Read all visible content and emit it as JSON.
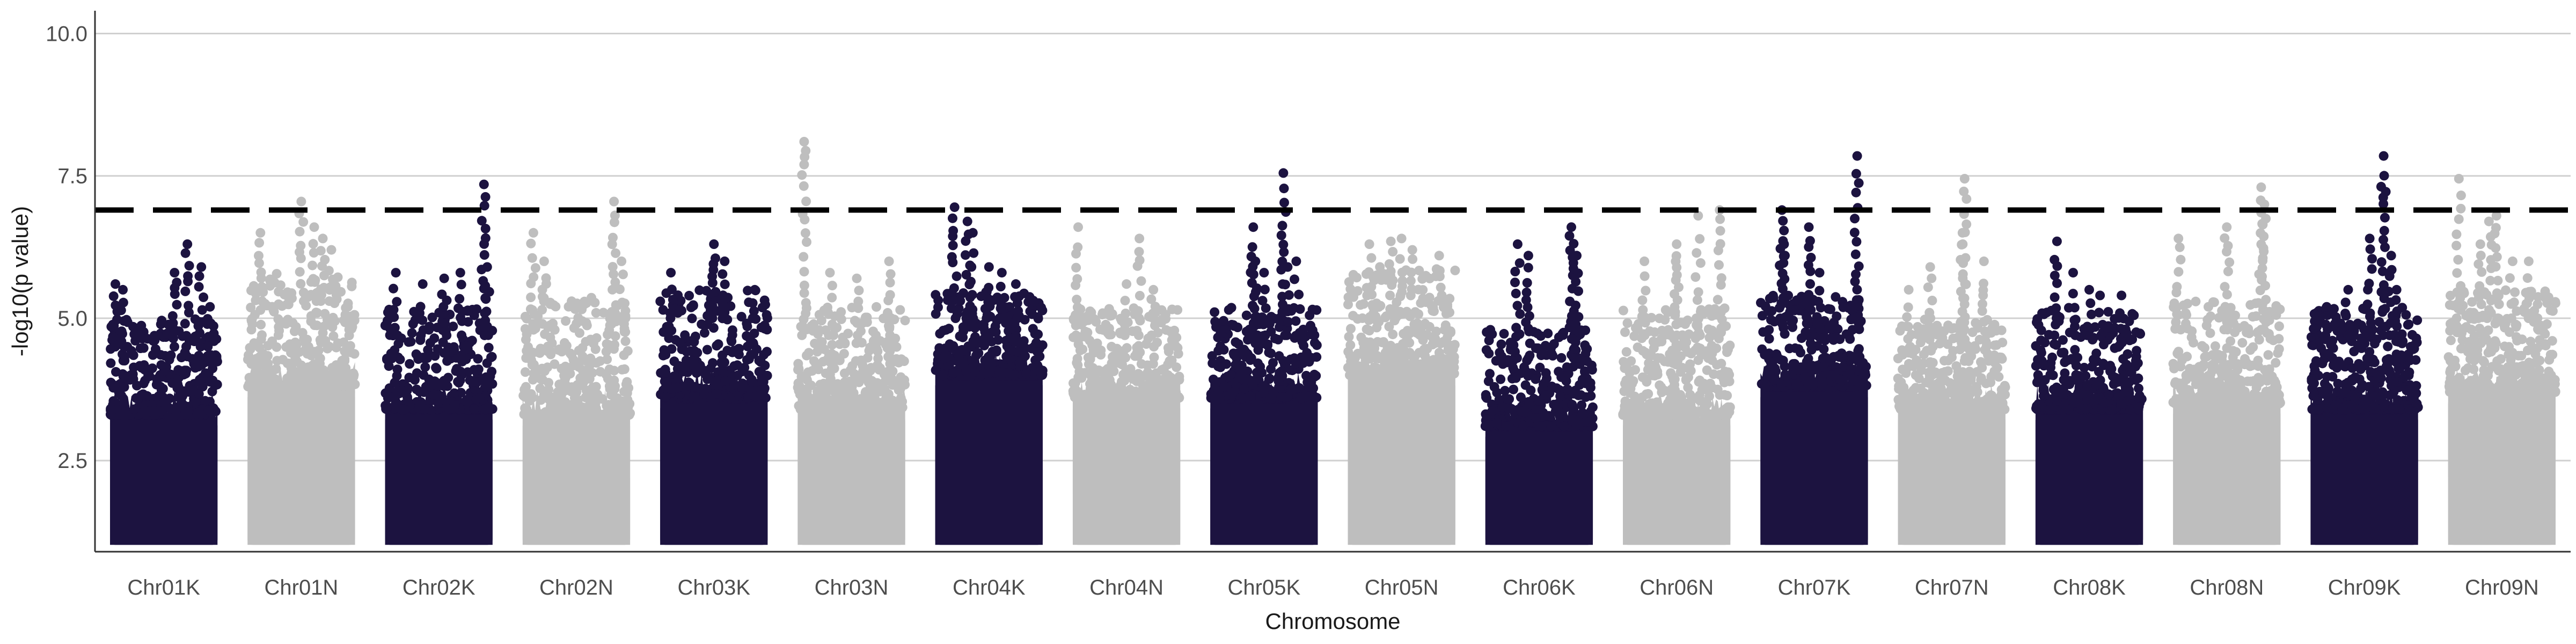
{
  "chart_data": {
    "type": "scatter",
    "subtype": "manhattan",
    "title": "",
    "xlabel": "Chromosome",
    "ylabel": "-log10(p value)",
    "ylim": [
      0.9,
      10.4
    ],
    "yticks": [
      2.5,
      5.0,
      7.5,
      10.0
    ],
    "ytick_labels": [
      "2.5",
      "5.0",
      "7.5",
      "10.0"
    ],
    "grid": "horizontal",
    "legend": "none",
    "threshold": {
      "y": 6.9,
      "style": "dashed",
      "color": "#000000"
    },
    "colors": {
      "dark": "#1c1340",
      "light": "#bebebe"
    },
    "categories": [
      "Chr01K",
      "Chr01N",
      "Chr02K",
      "Chr02N",
      "Chr03K",
      "Chr03N",
      "Chr04K",
      "Chr04N",
      "Chr05K",
      "Chr05N",
      "Chr06K",
      "Chr06N",
      "Chr07K",
      "Chr07N",
      "Chr08K",
      "Chr08N",
      "Chr09K",
      "Chr09N"
    ],
    "series": [
      {
        "category": "Chr01K",
        "color": "dark",
        "band_top": 3.5,
        "typical_max": 4.8,
        "max": 6.3,
        "peaks": [
          [
            0.05,
            5.6
          ],
          [
            0.12,
            5.5
          ],
          [
            0.6,
            5.8
          ],
          [
            0.72,
            6.3
          ],
          [
            0.85,
            5.9
          ],
          [
            0.93,
            5.2
          ]
        ]
      },
      {
        "category": "Chr01N",
        "color": "light",
        "band_top": 4.0,
        "typical_max": 5.6,
        "max": 7.05,
        "peaks": [
          [
            0.12,
            6.5
          ],
          [
            0.5,
            7.05
          ],
          [
            0.62,
            6.6
          ],
          [
            0.7,
            6.4
          ],
          [
            0.78,
            6.2
          ]
        ]
      },
      {
        "category": "Chr02K",
        "color": "dark",
        "band_top": 3.6,
        "typical_max": 5.0,
        "max": 7.35,
        "peaks": [
          [
            0.1,
            5.8
          ],
          [
            0.35,
            5.6
          ],
          [
            0.55,
            5.7
          ],
          [
            0.7,
            5.8
          ],
          [
            0.92,
            7.35
          ],
          [
            0.95,
            5.9
          ]
        ]
      },
      {
        "category": "Chr02N",
        "color": "light",
        "band_top": 3.5,
        "typical_max": 5.2,
        "max": 7.05,
        "peaks": [
          [
            0.1,
            6.5
          ],
          [
            0.2,
            6.0
          ],
          [
            0.85,
            7.05
          ],
          [
            0.92,
            6.0
          ]
        ]
      },
      {
        "category": "Chr03K",
        "color": "dark",
        "band_top": 3.8,
        "typical_max": 5.3,
        "max": 6.3,
        "peaks": [
          [
            0.1,
            5.8
          ],
          [
            0.5,
            6.3
          ],
          [
            0.6,
            6.0
          ],
          [
            0.88,
            5.5
          ]
        ]
      },
      {
        "category": "Chr03N",
        "color": "light",
        "band_top": 3.6,
        "typical_max": 5.0,
        "max": 8.1,
        "peaks": [
          [
            0.06,
            8.1
          ],
          [
            0.3,
            5.8
          ],
          [
            0.55,
            5.7
          ],
          [
            0.85,
            6.0
          ]
        ]
      },
      {
        "category": "Chr04K",
        "color": "dark",
        "band_top": 4.2,
        "typical_max": 5.3,
        "max": 6.95,
        "peaks": [
          [
            0.18,
            6.95
          ],
          [
            0.3,
            6.7
          ],
          [
            0.35,
            6.5
          ],
          [
            0.5,
            5.9
          ],
          [
            0.62,
            5.8
          ],
          [
            0.75,
            5.6
          ]
        ]
      },
      {
        "category": "Chr04N",
        "color": "light",
        "band_top": 3.8,
        "typical_max": 5.0,
        "max": 6.6,
        "peaks": [
          [
            0.05,
            6.6
          ],
          [
            0.5,
            5.6
          ],
          [
            0.62,
            6.4
          ],
          [
            0.75,
            5.5
          ]
        ]
      },
      {
        "category": "Chr05K",
        "color": "dark",
        "band_top": 3.8,
        "typical_max": 5.0,
        "max": 7.55,
        "peaks": [
          [
            0.4,
            6.6
          ],
          [
            0.42,
            6.0
          ],
          [
            0.5,
            5.8
          ],
          [
            0.68,
            7.55
          ],
          [
            0.72,
            5.9
          ],
          [
            0.8,
            6.0
          ]
        ]
      },
      {
        "category": "Chr05N",
        "color": "light",
        "band_top": 4.2,
        "typical_max": 5.7,
        "max": 6.4,
        "peaks": [
          [
            0.2,
            6.3
          ],
          [
            0.4,
            6.35
          ],
          [
            0.5,
            6.4
          ],
          [
            0.6,
            6.2
          ],
          [
            0.85,
            6.1
          ]
        ]
      },
      {
        "category": "Chr06K",
        "color": "dark",
        "band_top": 3.3,
        "typical_max": 4.6,
        "max": 6.6,
        "peaks": [
          [
            0.3,
            6.3
          ],
          [
            0.4,
            6.1
          ],
          [
            0.8,
            6.6
          ],
          [
            0.85,
            6.1
          ]
        ]
      },
      {
        "category": "Chr06N",
        "color": "light",
        "band_top": 3.5,
        "typical_max": 5.0,
        "max": 6.9,
        "peaks": [
          [
            0.2,
            6.0
          ],
          [
            0.5,
            6.3
          ],
          [
            0.7,
            6.8
          ],
          [
            0.9,
            6.9
          ]
        ]
      },
      {
        "category": "Chr07K",
        "color": "dark",
        "band_top": 4.0,
        "typical_max": 5.2,
        "max": 7.85,
        "peaks": [
          [
            0.2,
            6.9
          ],
          [
            0.22,
            6.3
          ],
          [
            0.45,
            6.6
          ],
          [
            0.55,
            5.8
          ],
          [
            0.9,
            7.85
          ]
        ]
      },
      {
        "category": "Chr07N",
        "color": "light",
        "band_top": 3.6,
        "typical_max": 4.8,
        "max": 7.45,
        "peaks": [
          [
            0.1,
            5.5
          ],
          [
            0.3,
            5.9
          ],
          [
            0.6,
            6.5
          ],
          [
            0.62,
            7.45
          ],
          [
            0.8,
            6.0
          ]
        ]
      },
      {
        "category": "Chr08K",
        "color": "dark",
        "band_top": 3.6,
        "typical_max": 5.0,
        "max": 6.35,
        "peaks": [
          [
            0.2,
            6.35
          ],
          [
            0.35,
            5.8
          ],
          [
            0.5,
            5.5
          ],
          [
            0.6,
            5.4
          ],
          [
            0.8,
            5.4
          ]
        ]
      },
      {
        "category": "Chr08N",
        "color": "light",
        "band_top": 3.7,
        "typical_max": 5.1,
        "max": 7.3,
        "peaks": [
          [
            0.05,
            6.4
          ],
          [
            0.5,
            6.6
          ],
          [
            0.82,
            7.3
          ],
          [
            0.85,
            7.0
          ]
        ]
      },
      {
        "category": "Chr09K",
        "color": "dark",
        "band_top": 3.6,
        "typical_max": 5.0,
        "max": 7.85,
        "peaks": [
          [
            0.15,
            5.2
          ],
          [
            0.35,
            5.5
          ],
          [
            0.55,
            6.4
          ],
          [
            0.68,
            7.85
          ],
          [
            0.75,
            6.1
          ],
          [
            0.8,
            5.5
          ]
        ]
      },
      {
        "category": "Chr09N",
        "color": "light",
        "band_top": 3.9,
        "typical_max": 5.3,
        "max": 7.45,
        "peaks": [
          [
            0.1,
            7.45
          ],
          [
            0.3,
            6.3
          ],
          [
            0.38,
            6.7
          ],
          [
            0.45,
            6.8
          ],
          [
            0.6,
            6.0
          ],
          [
            0.75,
            6.0
          ]
        ]
      }
    ]
  }
}
